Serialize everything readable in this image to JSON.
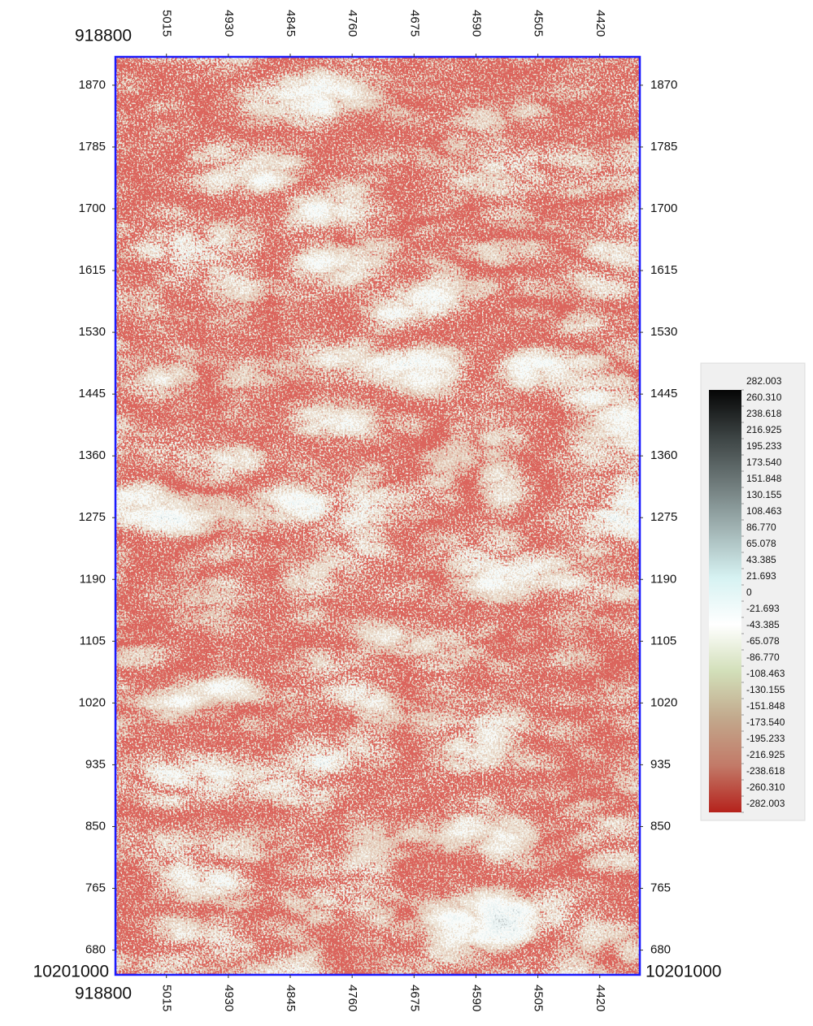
{
  "chart_data": {
    "type": "heatmap",
    "corner_labels": {
      "x_origin": "918800",
      "y_origin": "10201000"
    },
    "xlim": [
      5085,
      4365
    ],
    "xticks": [
      5015,
      4930,
      4845,
      4760,
      4675,
      4590,
      4505,
      4420
    ],
    "ylim": [
      646,
      1909
    ],
    "yticks": [
      1870,
      1785,
      1700,
      1615,
      1530,
      1445,
      1360,
      1275,
      1190,
      1105,
      1020,
      935,
      850,
      765,
      680
    ],
    "frame_color": "#1a1aff",
    "colorbar": {
      "clim": [
        -282.003,
        282.003
      ],
      "ticks": [
        282.003,
        260.31,
        238.618,
        216.925,
        195.233,
        173.54,
        151.848,
        130.155,
        108.463,
        86.77,
        65.078,
        43.385,
        21.693,
        0,
        -21.693,
        -43.385,
        -65.078,
        -86.77,
        -108.463,
        -130.155,
        -151.848,
        -173.54,
        -195.233,
        -216.925,
        -238.618,
        -260.31,
        -282.003
      ],
      "tick_labels": [
        "282.003",
        "260.310",
        "238.618",
        "216.925",
        "195.233",
        "173.540",
        "151.848",
        "130.155",
        "108.463",
        "86.770",
        "65.078",
        "43.385",
        "21.693",
        "0",
        "-21.693",
        "-43.385",
        "-65.078",
        "-86.770",
        "-108.463",
        "-130.155",
        "-151.848",
        "-173.540",
        "-195.233",
        "-216.925",
        "-238.618",
        "-260.310",
        "-282.003"
      ],
      "colors": [
        "#050505",
        "#3c4343",
        "#6f7b7b",
        "#a3b6b6",
        "#d6f2f2",
        "#ffffff",
        "#d2dfb9",
        "#c2a88c",
        "#c27a68",
        "#b5221c"
      ]
    }
  }
}
